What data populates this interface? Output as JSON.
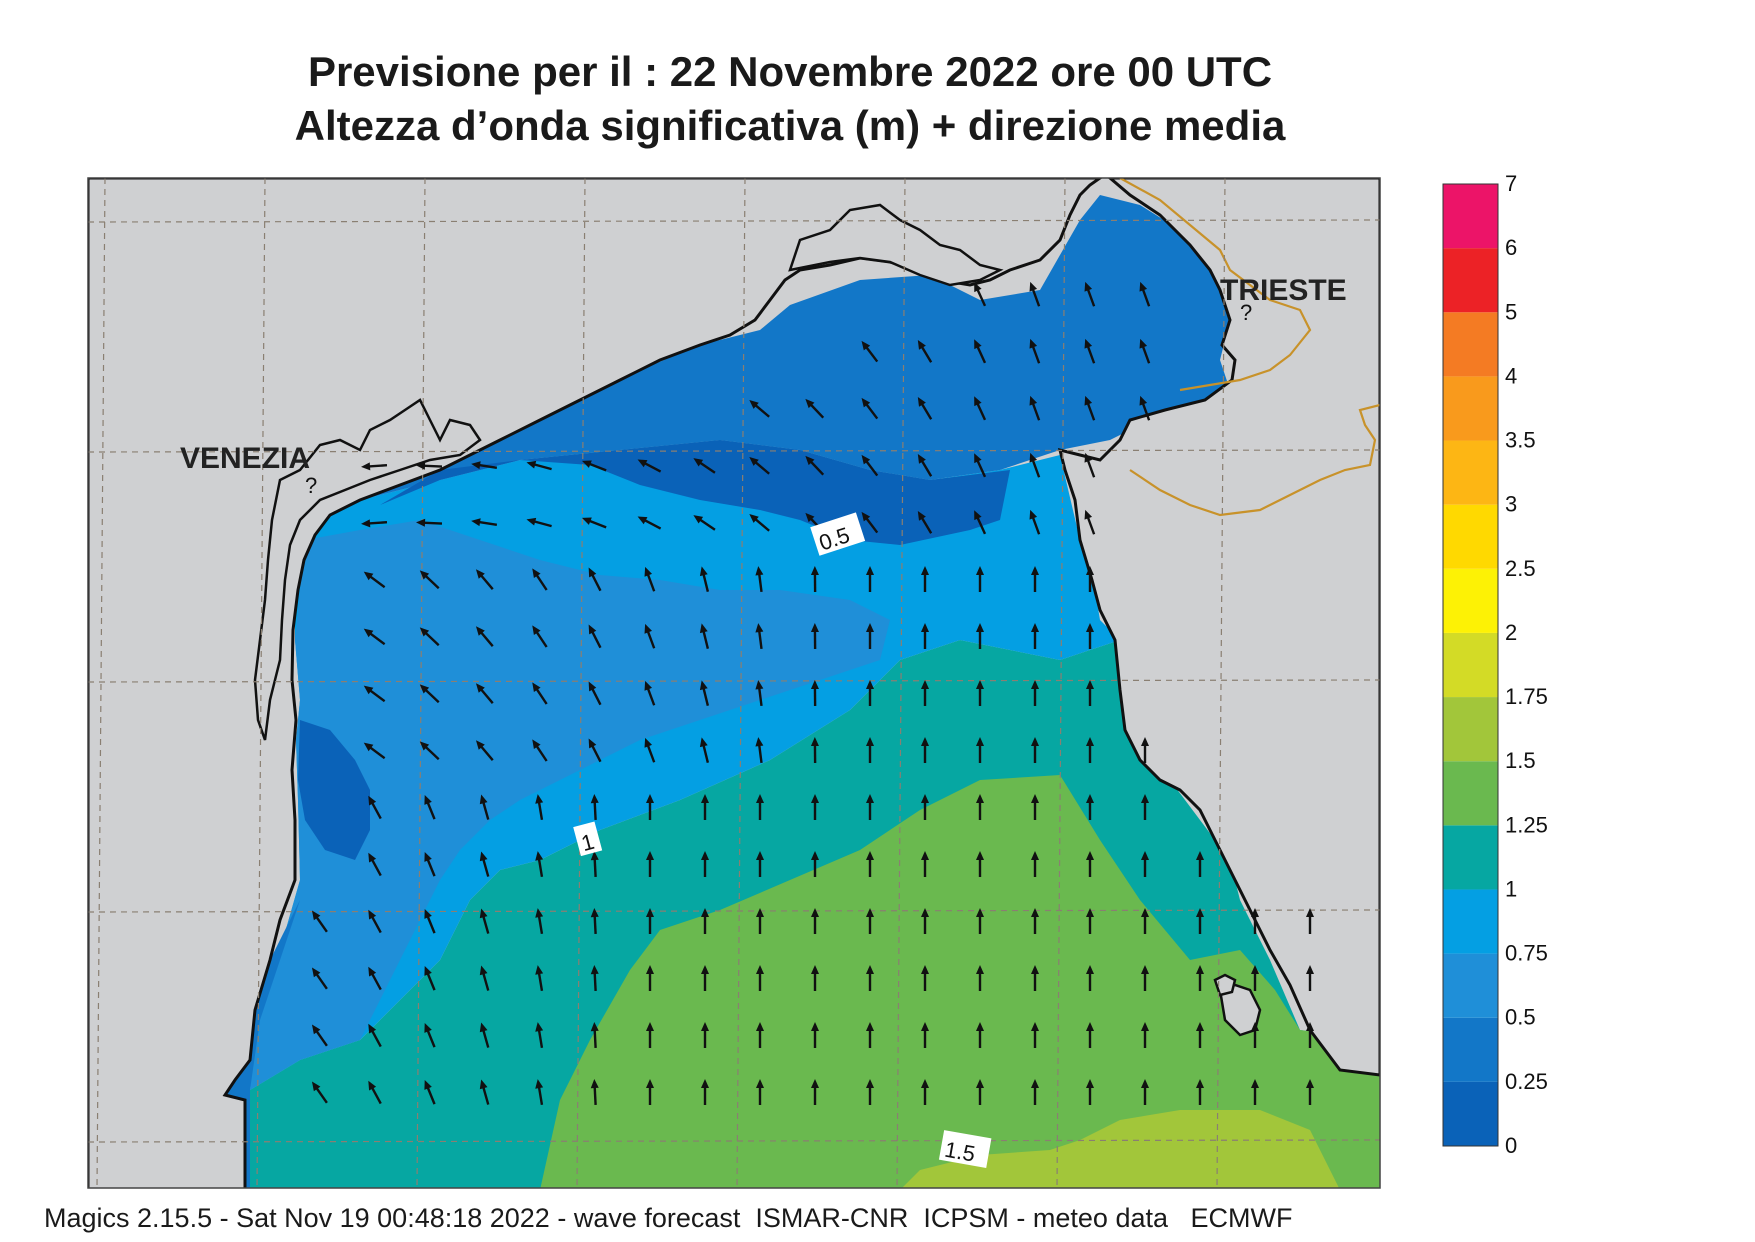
{
  "title": {
    "line1": "Previsione per il  :  22 Novembre  2022   ore 00 UTC",
    "line2": "Altezza d’onda significativa (m) + direzione media"
  },
  "places": {
    "venezia": "VENEZIA",
    "trieste": "TRIESTE"
  },
  "contour_labels": [
    "0.5",
    "1",
    "1.5"
  ],
  "colorbar": {
    "labels": [
      "0",
      "0.25",
      "0.5",
      "0.75",
      "1",
      "1.25",
      "1.5",
      "1.75",
      "2",
      "2.5",
      "3",
      "3.5",
      "4",
      "5",
      "6",
      "7"
    ],
    "colors": [
      "#0a62b8",
      "#1277c8",
      "#1f8fd8",
      "#049fe3",
      "#06a7a2",
      "#6ab94f",
      "#a2c63a",
      "#d3db26",
      "#fdf205",
      "#ffd900",
      "#fdb614",
      "#f99a1c",
      "#f47b23",
      "#ec2226",
      "#ec1468"
    ]
  },
  "colors": {
    "land": "#cfd0d2",
    "coast": "#111111",
    "border": "#c8922a",
    "grid": "#8a7f72"
  },
  "footer": "Magics 2.15.5 - Sat Nov 19 00:48:18 2022 - wave forecast  ISMAR-CNR  ICPSM - meteo data   ECMWF"
}
